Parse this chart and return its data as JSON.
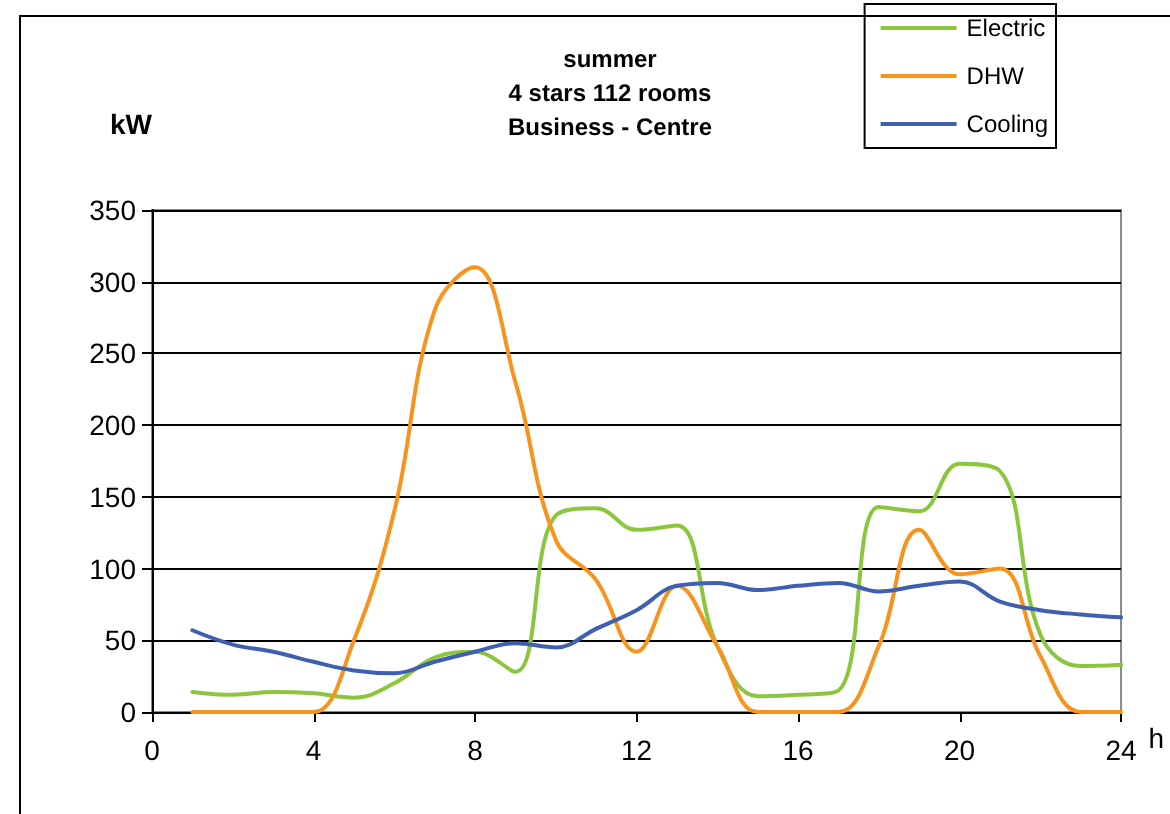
{
  "chart_data": {
    "type": "line",
    "title": "summer\n4 stars 112 rooms\nBusiness - Centre",
    "xlabel": "h",
    "ylabel": "kW",
    "x": [
      1,
      2,
      3,
      4,
      5,
      6,
      7,
      8,
      9,
      10,
      11,
      12,
      13,
      14,
      15,
      16,
      17,
      18,
      19,
      20,
      21,
      22,
      23,
      24
    ],
    "series": [
      {
        "name": "Electric",
        "color": "#8cc63e",
        "values": [
          14,
          12,
          14,
          13,
          10,
          20,
          38,
          42,
          28,
          137,
          142,
          127,
          130,
          46,
          11,
          12,
          15,
          143,
          140,
          173,
          168,
          54,
          32,
          33
        ]
      },
      {
        "name": "DHW",
        "color": "#f7941d",
        "values": [
          0,
          0,
          0,
          0,
          50,
          140,
          280,
          310,
          230,
          120,
          92,
          42,
          88,
          46,
          0,
          0,
          0,
          46,
          127,
          96,
          100,
          39,
          0,
          0
        ]
      },
      {
        "name": "Cooling",
        "color": "#3f5fb0",
        "values": [
          57,
          47,
          42,
          35,
          29,
          27,
          35,
          42,
          48,
          45,
          58,
          71,
          88,
          90,
          85,
          88,
          90,
          84,
          88,
          91,
          77,
          71,
          68,
          66
        ]
      }
    ],
    "xlim": [
      0,
      24
    ],
    "xticks": [
      0,
      4,
      8,
      12,
      16,
      20,
      24
    ],
    "ylim": [
      0,
      350
    ],
    "yticks": [
      0,
      50,
      100,
      150,
      200,
      250,
      300,
      350
    ],
    "grid": "y",
    "legend": "top right",
    "marker": "none",
    "line_style": "solid"
  }
}
